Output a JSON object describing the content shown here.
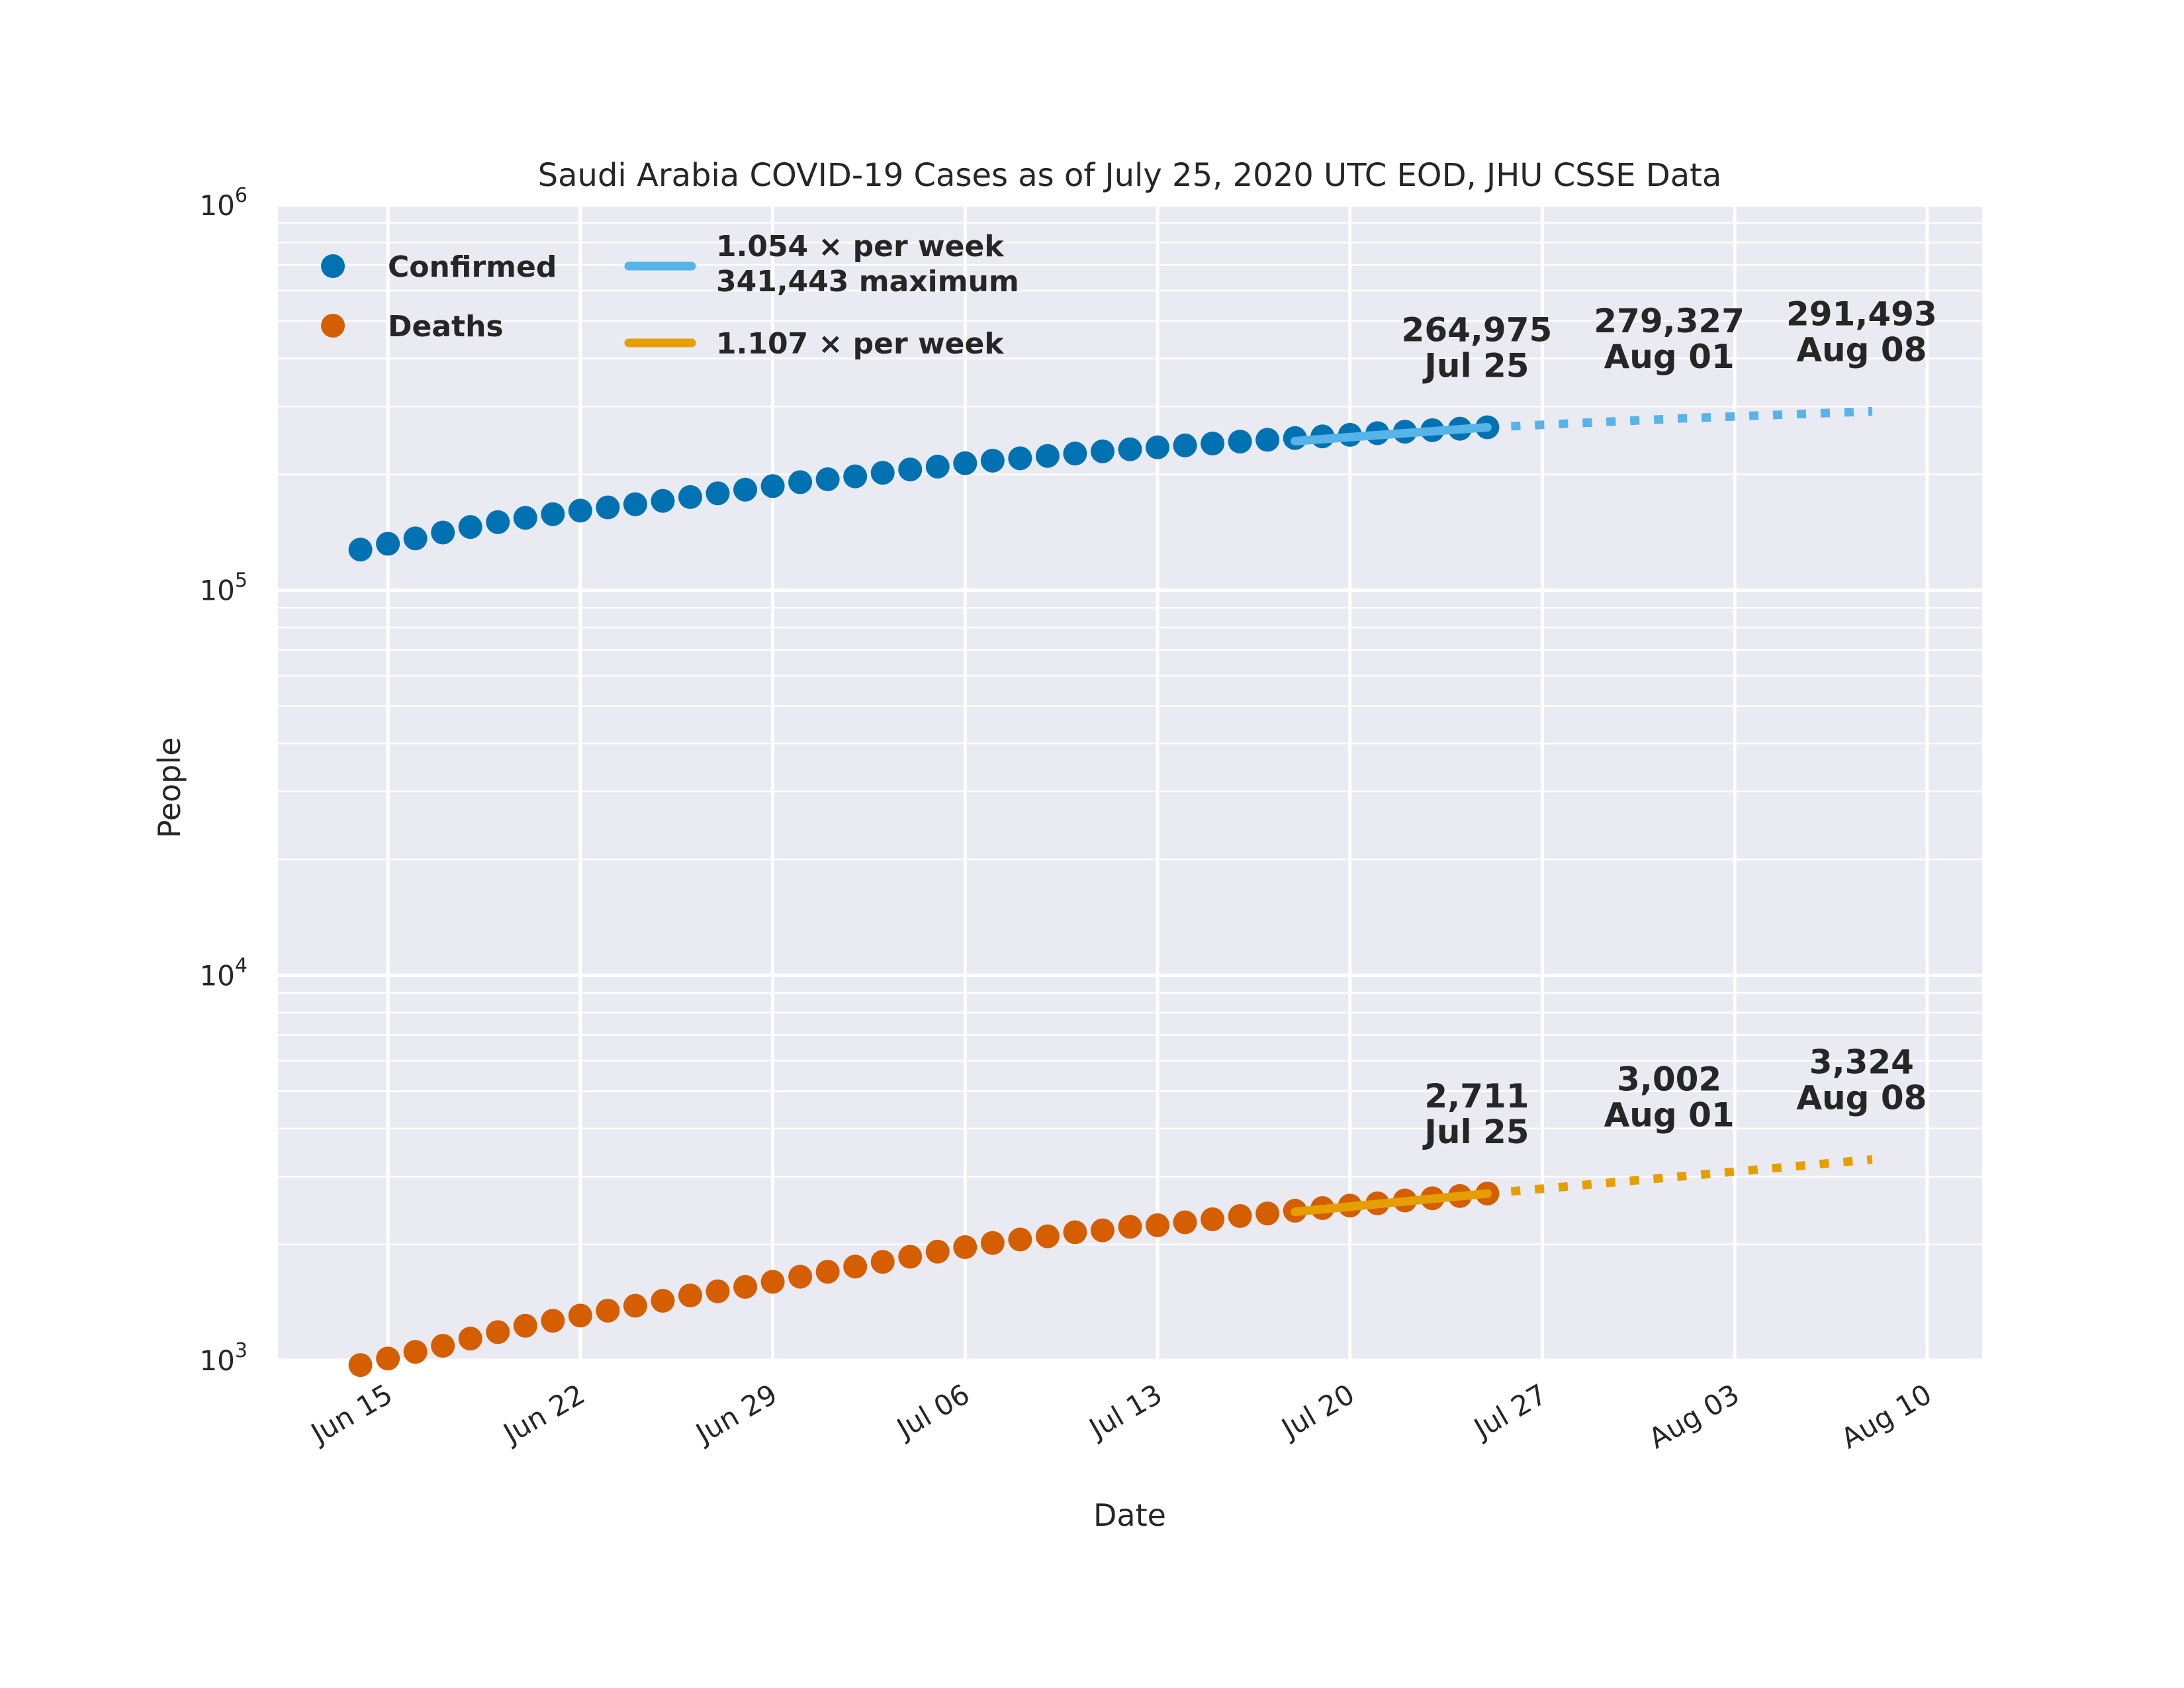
{
  "chart_data": {
    "type": "scatter",
    "title": "Saudi Arabia COVID-19 Cases as of July 25, 2020 UTC EOD, JHU CSSE Data",
    "xlabel": "Date",
    "ylabel": "People",
    "y_scale": "log",
    "ylim": [
      1000,
      1000000
    ],
    "xlim": [
      "2020-06-11",
      "2020-08-12"
    ],
    "grid": true,
    "legend_position": "top-left",
    "x_ticks": [
      "Jun 15",
      "Jun 22",
      "Jun 29",
      "Jul 06",
      "Jul 13",
      "Jul 20",
      "Jul 27",
      "Aug 03",
      "Aug 10"
    ],
    "x_tick_dates": [
      "2020-06-15",
      "2020-06-22",
      "2020-06-29",
      "2020-07-06",
      "2020-07-13",
      "2020-07-20",
      "2020-07-27",
      "2020-08-03",
      "2020-08-10"
    ],
    "y_ticks": [
      {
        "value": 1000,
        "base": "10",
        "exp": "3"
      },
      {
        "value": 10000,
        "base": "10",
        "exp": "4"
      },
      {
        "value": 100000,
        "base": "10",
        "exp": "5"
      },
      {
        "value": 1000000,
        "base": "10",
        "exp": "6"
      }
    ],
    "dates": [
      "2020-06-14",
      "2020-06-15",
      "2020-06-16",
      "2020-06-17",
      "2020-06-18",
      "2020-06-19",
      "2020-06-20",
      "2020-06-21",
      "2020-06-22",
      "2020-06-23",
      "2020-06-24",
      "2020-06-25",
      "2020-06-26",
      "2020-06-27",
      "2020-06-28",
      "2020-06-29",
      "2020-06-30",
      "2020-07-01",
      "2020-07-02",
      "2020-07-03",
      "2020-07-04",
      "2020-07-05",
      "2020-07-06",
      "2020-07-07",
      "2020-07-08",
      "2020-07-09",
      "2020-07-10",
      "2020-07-11",
      "2020-07-12",
      "2020-07-13",
      "2020-07-14",
      "2020-07-15",
      "2020-07-16",
      "2020-07-17",
      "2020-07-18",
      "2020-07-19",
      "2020-07-20",
      "2020-07-21",
      "2020-07-22",
      "2020-07-23",
      "2020-07-24",
      "2020-07-25"
    ],
    "series": [
      {
        "name": "Confirmed",
        "color": "#0072b2",
        "values": [
          127541,
          132048,
          136315,
          141234,
          145991,
          150292,
          154233,
          157612,
          161005,
          164144,
          167267,
          170639,
          174577,
          178504,
          182493,
          186436,
          190823,
          194225,
          197608,
          201801,
          205929,
          209509,
          213716,
          217108,
          220144,
          223327,
          226486,
          229480,
          232259,
          235111,
          237803,
          240474,
          243238,
          245851,
          248416,
          250920,
          253349,
          255825,
          258156,
          260394,
          262772,
          264975
        ]
      },
      {
        "name": "Deaths",
        "color": "#d55e00",
        "values": [
          972,
          1011,
          1052,
          1091,
          1139,
          1184,
          1230,
          1267,
          1307,
          1346,
          1386,
          1428,
          1474,
          1511,
          1552,
          1599,
          1649,
          1698,
          1752,
          1802,
          1858,
          1916,
          1968,
          2017,
          2059,
          2100,
          2151,
          2176,
          2223,
          2243,
          2283,
          2325,
          2370,
          2407,
          2447,
          2486,
          2523,
          2557,
          2601,
          2635,
          2672,
          2711
        ]
      }
    ],
    "fits": [
      {
        "label": "1.054 × per week",
        "label2": "341,443 maximum",
        "color": "#56b4e9",
        "fit_start": "2020-07-18",
        "fit_end": "2020-07-25",
        "fit_values": [
          244000,
          264975
        ],
        "projection_dates": [
          "2020-07-25",
          "2020-08-01",
          "2020-08-08"
        ],
        "projection_values": [
          264975,
          279327,
          291493
        ]
      },
      {
        "label": "1.107 × per week",
        "color": "#e69f00",
        "fit_start": "2020-07-18",
        "fit_end": "2020-07-25",
        "fit_values": [
          2430,
          2711
        ],
        "projection_dates": [
          "2020-07-25",
          "2020-08-01",
          "2020-08-08"
        ],
        "projection_values": [
          2711,
          3002,
          3324
        ]
      }
    ],
    "annotations": [
      {
        "value_text": "264,975",
        "date_text": "Jul 25",
        "date": "2020-07-25",
        "y": 264975
      },
      {
        "value_text": "279,327",
        "date_text": "Aug 01",
        "date": "2020-08-01",
        "y": 279327
      },
      {
        "value_text": "291,493",
        "date_text": "Aug 08",
        "date": "2020-08-08",
        "y": 291493
      },
      {
        "value_text": "2,711",
        "date_text": "Jul 25",
        "date": "2020-07-25",
        "y": 2711
      },
      {
        "value_text": "3,002",
        "date_text": "Aug 01",
        "date": "2020-08-01",
        "y": 3002
      },
      {
        "value_text": "3,324",
        "date_text": "Aug 08",
        "date": "2020-08-08",
        "y": 3324
      }
    ]
  },
  "colors": {
    "plot_background": "#eaeaf2",
    "grid": "#ffffff",
    "text": "#262626"
  }
}
